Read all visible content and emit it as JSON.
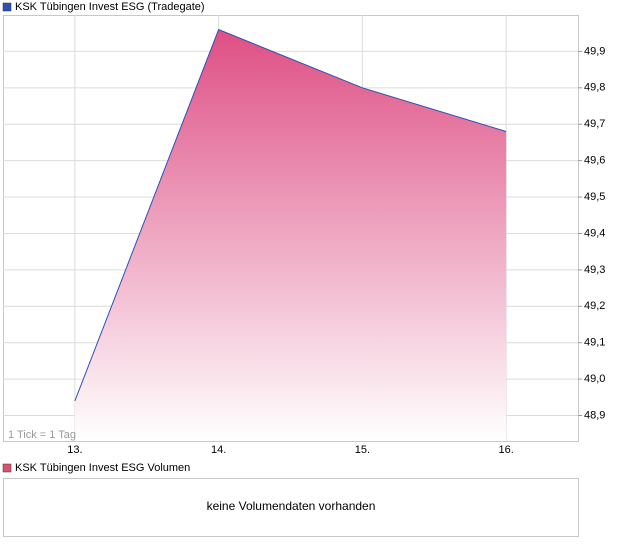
{
  "chart_data": {
    "type": "area",
    "legend": "KSK Tübingen Invest ESG (Tradegate)",
    "annotation": "1 Tick = 1 Tag",
    "categories": [
      "13.",
      "14.",
      "15.",
      "16."
    ],
    "series": [
      {
        "name": "KSK Tübingen Invest ESG (Tradegate)",
        "color": "#2f4fb5",
        "values": [
          48.94,
          49.96,
          49.8,
          49.68
        ]
      }
    ],
    "ylim": [
      48.83,
      50.0
    ],
    "yticks": [
      {
        "value": 48.9,
        "label": "48,9"
      },
      {
        "value": 49.0,
        "label": "49,0"
      },
      {
        "value": 49.1,
        "label": "49,1"
      },
      {
        "value": 49.2,
        "label": "49,2"
      },
      {
        "value": 49.3,
        "label": "49,3"
      },
      {
        "value": 49.4,
        "label": "49,4"
      },
      {
        "value": 49.5,
        "label": "49,5"
      },
      {
        "value": 49.6,
        "label": "49,6"
      },
      {
        "value": 49.7,
        "label": "49,7"
      },
      {
        "value": 49.8,
        "label": "49,8"
      },
      {
        "value": 49.9,
        "label": "49,9"
      }
    ],
    "grid": true
  },
  "volume_panel": {
    "legend": "KSK Tübingen Invest ESG Volumen",
    "message": "keine Volumendaten vorhanden"
  }
}
